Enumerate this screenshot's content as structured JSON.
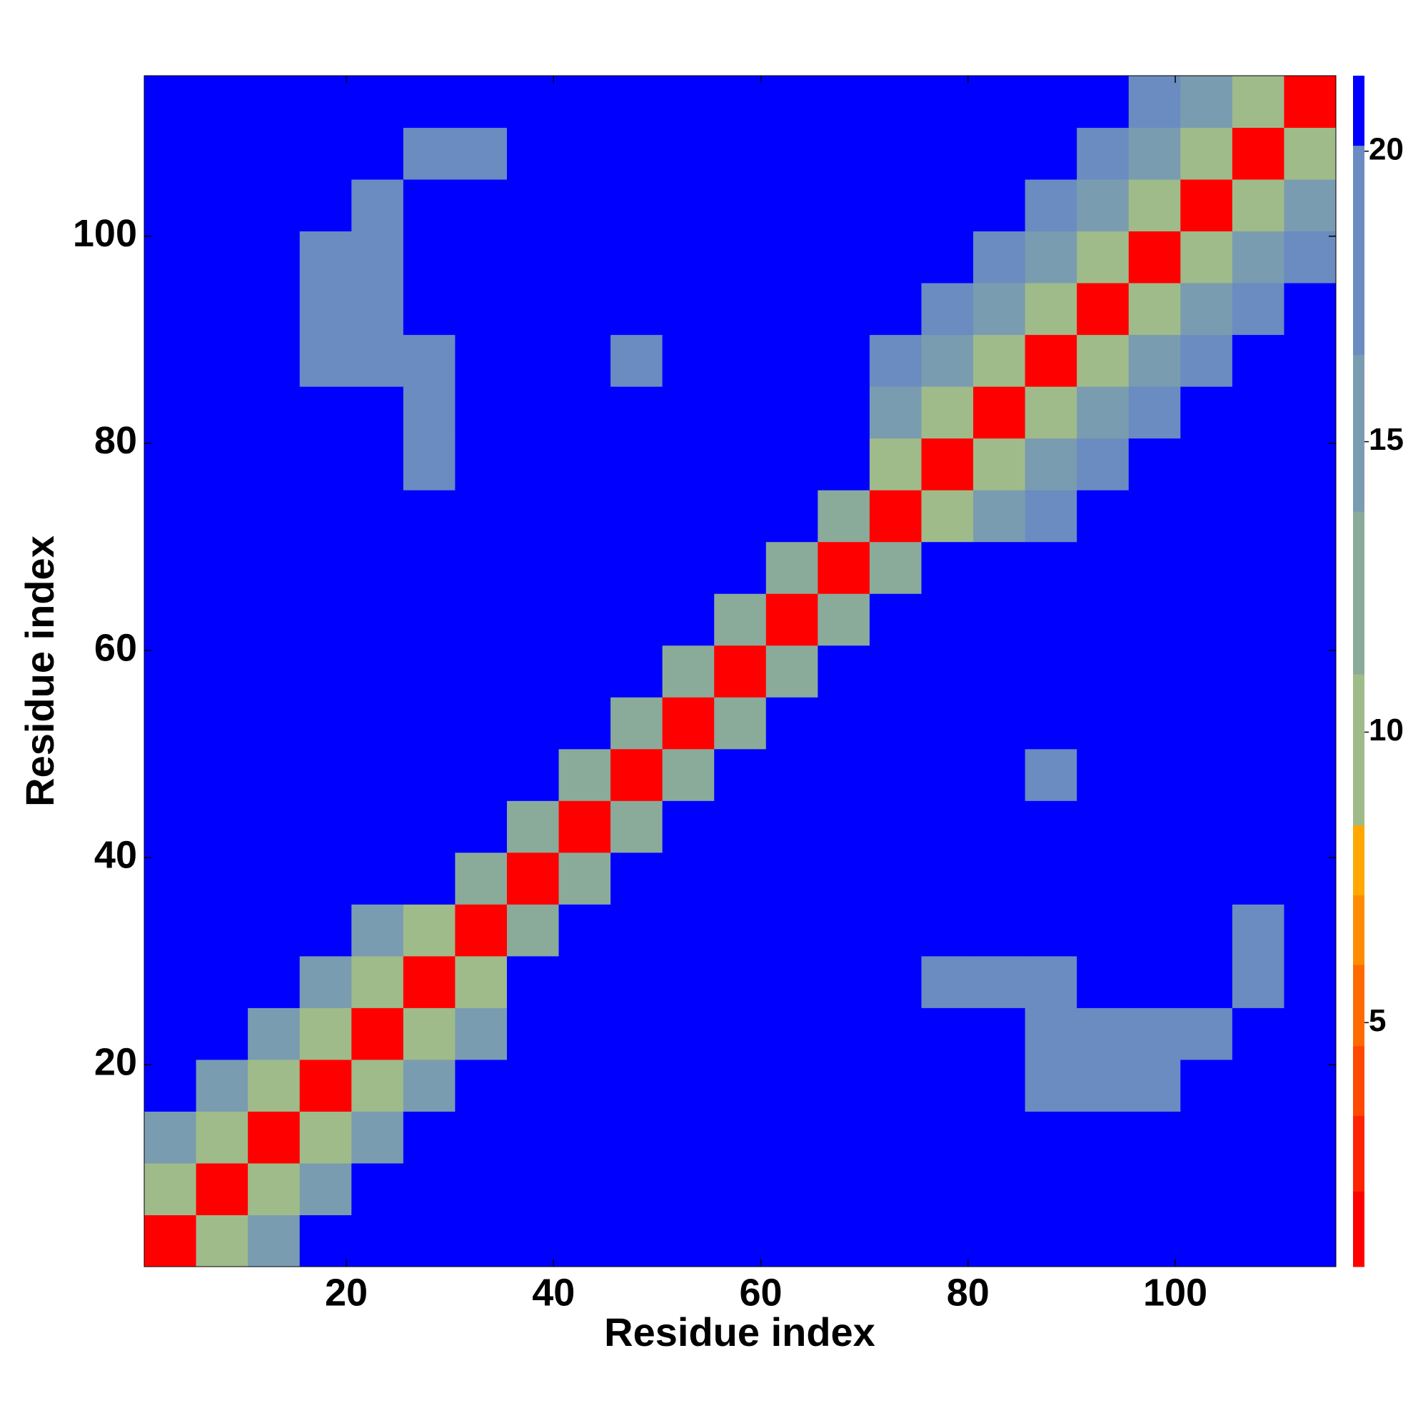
{
  "chart_data": {
    "type": "heatmap",
    "xlabel": "Residue index",
    "ylabel": "Residue index",
    "xlim": [
      0.5,
      115.5
    ],
    "ylim": [
      0.5,
      115.5
    ],
    "xticks": [
      20,
      40,
      60,
      80,
      100
    ],
    "yticks": [
      20,
      40,
      60,
      80,
      100
    ],
    "xbins": [
      0.5,
      5.5,
      10.5,
      15.5,
      20.5,
      25.5,
      30.5,
      35.5,
      40.5,
      45.5,
      50.5,
      55.5,
      60.5,
      65.5,
      70.5,
      75.5,
      80.5,
      85.5,
      90.5,
      95.5,
      100.5,
      105.5,
      110.5,
      115.5
    ],
    "ybins": [
      0.5,
      5.5,
      10.5,
      15.5,
      20.5,
      25.5,
      30.5,
      35.5,
      40.5,
      45.5,
      50.5,
      55.5,
      60.5,
      65.5,
      70.5,
      75.5,
      80.5,
      85.5,
      90.5,
      95.5,
      100.5,
      105.5,
      110.5,
      115.5
    ],
    "z": [
      [
        2,
        9,
        14,
        21,
        21,
        21,
        21,
        21,
        21,
        21,
        21,
        21,
        21,
        21,
        21,
        21,
        21,
        21,
        21,
        21,
        21,
        21,
        21
      ],
      [
        9,
        2,
        9,
        14,
        21,
        21,
        21,
        21,
        21,
        21,
        21,
        21,
        21,
        21,
        21,
        21,
        21,
        21,
        21,
        21,
        21,
        21,
        21
      ],
      [
        14,
        9,
        2,
        9,
        14,
        21,
        21,
        21,
        21,
        21,
        21,
        21,
        21,
        21,
        21,
        21,
        21,
        21,
        21,
        21,
        21,
        21,
        21
      ],
      [
        21,
        14,
        9,
        2,
        9,
        14,
        21,
        21,
        21,
        21,
        21,
        21,
        21,
        21,
        21,
        21,
        21,
        19,
        19,
        19,
        21,
        21,
        21
      ],
      [
        21,
        21,
        14,
        9,
        2,
        9,
        14,
        21,
        21,
        21,
        21,
        21,
        21,
        21,
        21,
        21,
        21,
        19,
        19,
        19,
        19,
        21,
        21
      ],
      [
        21,
        21,
        21,
        14,
        9,
        2,
        9,
        21,
        21,
        21,
        21,
        21,
        21,
        21,
        21,
        19,
        19,
        19,
        21,
        21,
        21,
        19,
        21
      ],
      [
        21,
        21,
        21,
        21,
        14,
        9,
        2,
        13,
        21,
        21,
        21,
        21,
        21,
        21,
        21,
        21,
        21,
        21,
        21,
        21,
        21,
        19,
        21
      ],
      [
        21,
        21,
        21,
        21,
        21,
        21,
        13,
        2,
        13,
        21,
        21,
        21,
        21,
        21,
        21,
        21,
        21,
        21,
        21,
        21,
        21,
        21,
        21
      ],
      [
        21,
        21,
        21,
        21,
        21,
        21,
        21,
        13,
        2,
        13,
        21,
        21,
        21,
        21,
        21,
        21,
        21,
        21,
        21,
        21,
        21,
        21,
        21
      ],
      [
        21,
        21,
        21,
        21,
        21,
        21,
        21,
        21,
        13,
        2,
        13,
        21,
        21,
        21,
        21,
        21,
        21,
        19,
        21,
        21,
        21,
        21,
        21
      ],
      [
        21,
        21,
        21,
        21,
        21,
        21,
        21,
        21,
        21,
        13,
        2,
        13,
        21,
        21,
        21,
        21,
        21,
        21,
        21,
        21,
        21,
        21,
        21
      ],
      [
        21,
        21,
        21,
        21,
        21,
        21,
        21,
        21,
        21,
        21,
        13,
        2,
        13,
        21,
        21,
        21,
        21,
        21,
        21,
        21,
        21,
        21,
        21
      ],
      [
        21,
        21,
        21,
        21,
        21,
        21,
        21,
        21,
        21,
        21,
        21,
        13,
        2,
        13,
        21,
        21,
        21,
        21,
        21,
        21,
        21,
        21,
        21
      ],
      [
        21,
        21,
        21,
        21,
        21,
        21,
        21,
        21,
        21,
        21,
        21,
        21,
        13,
        2,
        13,
        21,
        21,
        21,
        21,
        21,
        21,
        21,
        21
      ],
      [
        21,
        21,
        21,
        21,
        21,
        21,
        21,
        21,
        21,
        21,
        21,
        21,
        21,
        13,
        2,
        9,
        14,
        17,
        21,
        21,
        21,
        21,
        21
      ],
      [
        21,
        21,
        21,
        21,
        21,
        19,
        21,
        21,
        21,
        21,
        21,
        21,
        21,
        21,
        9,
        2,
        9,
        14,
        17,
        21,
        21,
        21,
        21
      ],
      [
        21,
        21,
        21,
        21,
        21,
        19,
        21,
        21,
        21,
        21,
        21,
        21,
        21,
        21,
        14,
        9,
        2,
        9,
        14,
        17,
        21,
        21,
        21
      ],
      [
        21,
        21,
        21,
        19,
        19,
        19,
        21,
        21,
        21,
        19,
        21,
        21,
        21,
        21,
        17,
        14,
        9,
        2,
        9,
        14,
        17,
        21,
        21
      ],
      [
        21,
        21,
        21,
        19,
        19,
        21,
        21,
        21,
        21,
        21,
        21,
        21,
        21,
        21,
        21,
        17,
        14,
        9,
        2,
        9,
        14,
        17,
        21
      ],
      [
        21,
        21,
        21,
        19,
        19,
        21,
        21,
        21,
        21,
        21,
        21,
        21,
        21,
        21,
        21,
        21,
        17,
        14,
        9,
        2,
        9,
        14,
        17
      ],
      [
        21,
        21,
        21,
        21,
        19,
        21,
        21,
        21,
        21,
        21,
        21,
        21,
        21,
        21,
        21,
        21,
        21,
        17,
        14,
        9,
        2,
        9,
        14
      ],
      [
        21,
        21,
        21,
        21,
        21,
        19,
        19,
        21,
        21,
        21,
        21,
        21,
        21,
        21,
        21,
        21,
        21,
        21,
        17,
        14,
        9,
        2,
        9
      ],
      [
        21,
        21,
        21,
        21,
        21,
        21,
        21,
        21,
        21,
        21,
        21,
        21,
        21,
        21,
        21,
        21,
        21,
        21,
        21,
        17,
        14,
        9,
        2
      ]
    ],
    "colorbar": {
      "lim": [
        0.8,
        21.3
      ],
      "ticks": [
        5,
        10,
        15,
        20
      ],
      "levels": [
        0.8,
        2.1,
        3.4,
        4.6,
        6,
        7.2,
        8.4,
        11,
        13.8,
        16.5,
        20.1,
        21.3
      ],
      "colors": [
        "#ff0000",
        "#ff2400",
        "#ff4800",
        "#ff6a00",
        "#ff8c00",
        "#ffa800",
        "#9fbb8a",
        "#8aab9a",
        "#7a9cb0",
        "#6a8cc0",
        "#0000ff"
      ]
    }
  }
}
